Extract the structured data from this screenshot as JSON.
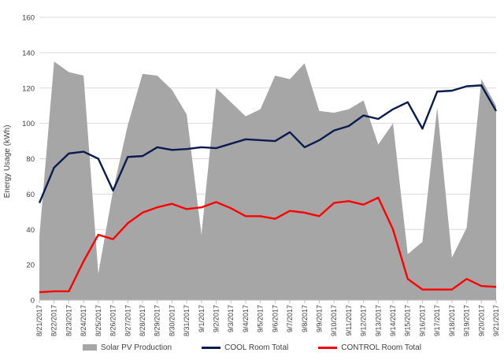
{
  "chart_data": {
    "type": "line",
    "title": "",
    "xlabel": "",
    "ylabel": "Energy Usage (kWh)",
    "ylim": [
      0,
      160
    ],
    "yticks": [
      0,
      20,
      40,
      60,
      80,
      100,
      120,
      140,
      160
    ],
    "grid": "horizontal",
    "legend_position": "bottom",
    "categories": [
      "8/21/2017",
      "8/22/2017",
      "8/23/2017",
      "8/24/2017",
      "8/25/2017",
      "8/26/2017",
      "8/27/2017",
      "8/28/2017",
      "8/29/2017",
      "8/30/2017",
      "8/31/2017",
      "9/1/2017",
      "9/2/2017",
      "9/3/2017",
      "9/4/2017",
      "9/5/2017",
      "9/6/2017",
      "9/7/2017",
      "9/8/2017",
      "9/9/2017",
      "9/10/2017",
      "9/11/2017",
      "9/12/2017",
      "9/13/2017",
      "9/14/2017",
      "9/15/2017",
      "9/16/2017",
      "9/17/2017",
      "9/18/2017",
      "9/19/2017",
      "9/20/2017",
      "9/21/2017"
    ],
    "series": [
      {
        "name": "Solar PV Production",
        "kind": "area",
        "color": "#a6a6a6",
        "values": [
          36,
          135,
          129,
          127,
          15,
          62,
          99,
          128,
          127,
          119,
          105,
          37,
          120,
          112,
          104,
          108,
          127,
          125,
          134,
          107,
          106,
          108,
          113,
          88,
          100,
          26,
          33,
          109,
          24,
          41,
          125,
          110
        ]
      },
      {
        "name": "COOL Room Total",
        "kind": "line",
        "color": "#0a1b4f",
        "values": [
          55,
          75,
          83,
          84,
          80,
          62,
          81,
          81.5,
          86.5,
          85,
          85.5,
          86.5,
          86,
          88.5,
          91,
          90.5,
          90,
          95,
          86.5,
          90.5,
          96,
          98.5,
          104.5,
          102.5,
          108,
          112,
          97,
          118,
          118.5,
          121,
          121.5,
          107
        ]
      },
      {
        "name": "CONTROL Room Total",
        "kind": "line",
        "color": "#ff0000",
        "values": [
          4.5,
          5,
          5,
          22,
          37,
          34.5,
          43.5,
          49.5,
          52.5,
          54.5,
          51.5,
          52.5,
          55.5,
          52,
          47.5,
          47.5,
          46,
          50.5,
          49.5,
          47.5,
          55,
          56,
          54,
          58,
          40,
          12,
          6,
          6,
          6,
          12,
          8,
          7.5
        ]
      }
    ]
  }
}
